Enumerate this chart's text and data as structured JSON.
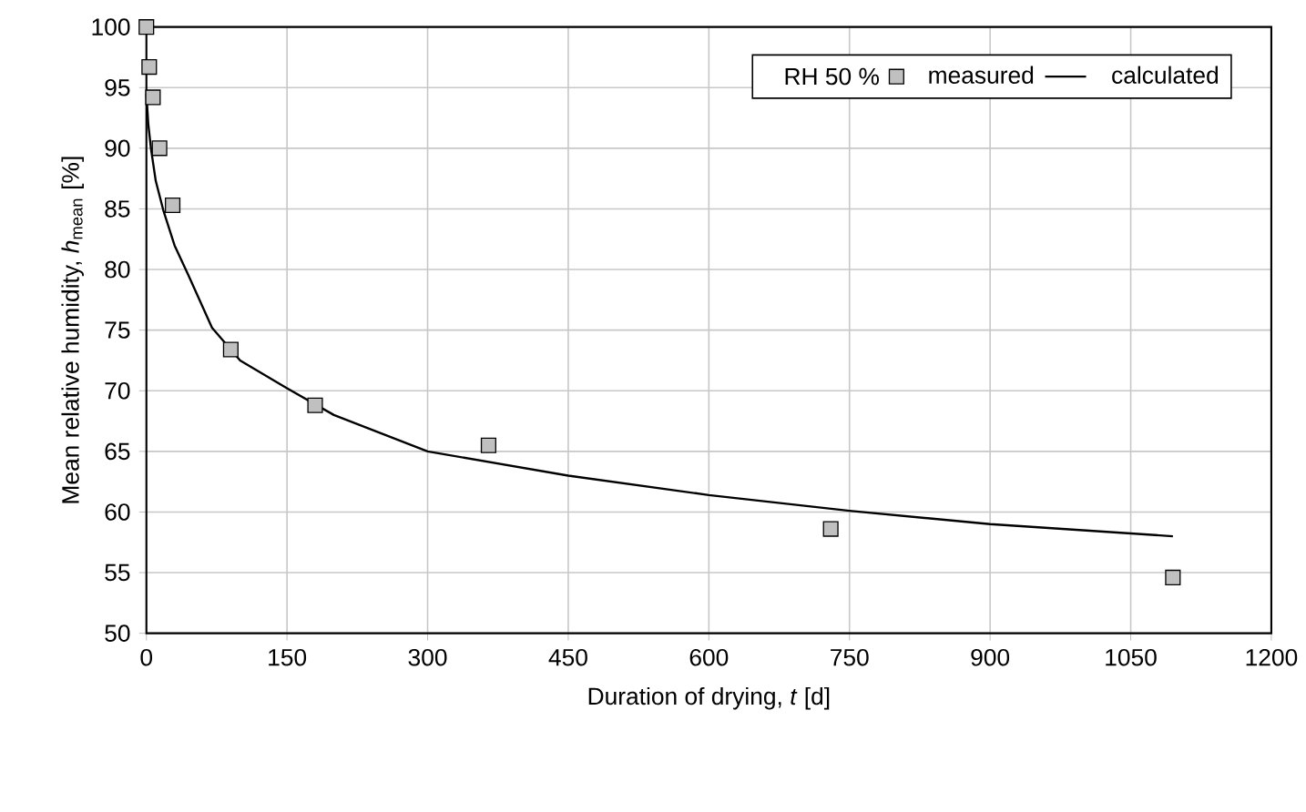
{
  "chart_data": {
    "type": "scatter",
    "xlabel": "Duration of drying, *t* [d]",
    "ylabel": "Mean relative humidity, *h*$_{mean}$ [%]",
    "legend_title": "RH 50 %",
    "xlim": [
      0,
      1200
    ],
    "xticks": [
      0,
      150,
      300,
      450,
      600,
      750,
      900,
      1050,
      1200
    ],
    "ylim": [
      50,
      100
    ],
    "yticks": [
      50,
      55,
      60,
      65,
      70,
      75,
      80,
      85,
      90,
      95,
      100
    ],
    "grid": true,
    "legend": "top right",
    "series": [
      {
        "name": "measured",
        "marker": "square",
        "color": "#c0c0c0",
        "x": [
          0,
          3,
          7,
          14,
          28,
          90,
          180,
          365,
          730,
          1095
        ],
        "values": [
          100,
          96.7,
          94.2,
          90,
          85.3,
          73.4,
          68.8,
          65.5,
          58.6,
          54.6
        ]
      },
      {
        "name": "calculated",
        "type": "line",
        "marker": "none",
        "color": "#000000",
        "x": [
          0,
          2,
          5,
          10,
          18,
          30,
          45,
          70,
          100,
          150,
          200,
          300,
          450,
          600,
          750,
          900,
          1095
        ],
        "values": [
          94.5,
          92,
          89.9,
          87.3,
          84.9,
          82,
          79.5,
          75.2,
          72.5,
          70.2,
          68,
          65,
          63,
          61.4,
          60.1,
          59,
          58.0
        ]
      }
    ]
  }
}
